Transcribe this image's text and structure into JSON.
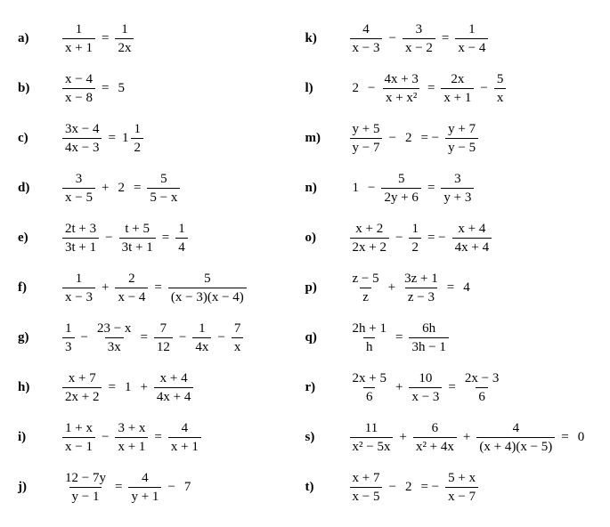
{
  "left": [
    {
      "label": "a)",
      "n1": "1",
      "d1": "x + 1",
      "op1": "=",
      "n2": "1",
      "d2": "2x"
    },
    {
      "label": "b)",
      "n1": "x − 4",
      "d1": "x − 8",
      "op1": "=",
      "t2": "5"
    },
    {
      "label": "c)",
      "n1": "3x − 4",
      "d1": "4x − 3",
      "op1": "=",
      "mix_i": "1",
      "mix_n": "1",
      "mix_d": "2"
    },
    {
      "label": "d)",
      "n1": "3",
      "d1": "x − 5",
      "op1": "+",
      "t2": "2",
      "op2": "=",
      "n3": "5",
      "d3": "5 − x"
    },
    {
      "label": "e)",
      "n1": "2t + 3",
      "d1": "3t + 1",
      "op1": "−",
      "n2": "t + 5",
      "d2": "3t + 1",
      "op2": "=",
      "n3": "1",
      "d3": "4"
    },
    {
      "label": "f)",
      "n1": "1",
      "d1": "x − 3",
      "op1": "+",
      "n2": "2",
      "d2": "x − 4",
      "op2": "=",
      "n3": "5",
      "d3": "(x − 3)(x − 4)"
    },
    {
      "label": "g)",
      "n1": "1",
      "d1": "3",
      "op1": "−",
      "n2": "23 − x",
      "d2": "3x",
      "op2": "=",
      "n3": "7",
      "d3": "12",
      "op3": "−",
      "n4": "1",
      "d4": "4x",
      "op4": "−",
      "n5": "7",
      "d5": "x"
    },
    {
      "label": "h)",
      "n1": "x + 7",
      "d1": "2x + 2",
      "op1": "=",
      "t2": "1",
      "op2": "+",
      "n3": "x + 4",
      "d3": "4x + 4"
    },
    {
      "label": "i)",
      "n1": "1 + x",
      "d1": "x − 1",
      "op1": "−",
      "n2": "3 + x",
      "d2": "x + 1",
      "op2": "=",
      "n3": "4",
      "d3": "x + 1"
    },
    {
      "label": "j)",
      "n1": "12 − 7y",
      "d1": "y − 1",
      "op1": "=",
      "n2": "4",
      "d2": "y + 1",
      "op2": "−",
      "t3": "7"
    }
  ],
  "right": [
    {
      "label": "k)",
      "n1": "4",
      "d1": "x − 3",
      "op1": "−",
      "n2": "3",
      "d2": "x − 2",
      "op2": "=",
      "n3": "1",
      "d3": "x − 4"
    },
    {
      "label": "l)",
      "t1": "2",
      "op1": "−",
      "n2": "4x + 3",
      "d2": "x + x²",
      "op2": "=",
      "n3": "2x",
      "d3": "x + 1",
      "op3": "−",
      "n4": "5",
      "d4": "x"
    },
    {
      "label": "m)",
      "n1": "y + 5",
      "d1": "y − 7",
      "op1": "−",
      "t2": "2",
      "op2": "= −",
      "n3": "y + 7",
      "d3": "y − 5"
    },
    {
      "label": "n)",
      "t1": "1",
      "op1": "−",
      "n2": "5",
      "d2": "2y + 6",
      "op2": "=",
      "n3": "3",
      "d3": "y + 3"
    },
    {
      "label": "o)",
      "n1": "x + 2",
      "d1": "2x + 2",
      "op1": "−",
      "n2": "1",
      "d2": "2",
      "op2": "= −",
      "n3": "x + 4",
      "d3": "4x + 4"
    },
    {
      "label": "p)",
      "n1": "z − 5",
      "d1": "z",
      "op1": "+",
      "n2": "3z + 1",
      "d2": "z − 3",
      "op2": "=",
      "t3": "4"
    },
    {
      "label": "q)",
      "n1": "2h + 1",
      "d1": "h",
      "op1": "=",
      "n2": "6h",
      "d2": "3h − 1"
    },
    {
      "label": "r)",
      "n1": "2x + 5",
      "d1": "6",
      "op1": "+",
      "n2": "10",
      "d2": "x − 3",
      "op2": "=",
      "n3": "2x − 3",
      "d3": "6"
    },
    {
      "label": "s)",
      "n1": "11",
      "d1": "x² − 5x",
      "op1": "+",
      "n2": "6",
      "d2": "x² + 4x",
      "op2": "+",
      "n3": "4",
      "d3": "(x + 4)(x − 5)",
      "op3": "=",
      "t4": "0"
    },
    {
      "label": "t)",
      "n1": "x + 7",
      "d1": "x − 5",
      "op1": "−",
      "t2": "2",
      "op2": "= −",
      "n3": "5 + x",
      "d3": "x − 7"
    }
  ]
}
